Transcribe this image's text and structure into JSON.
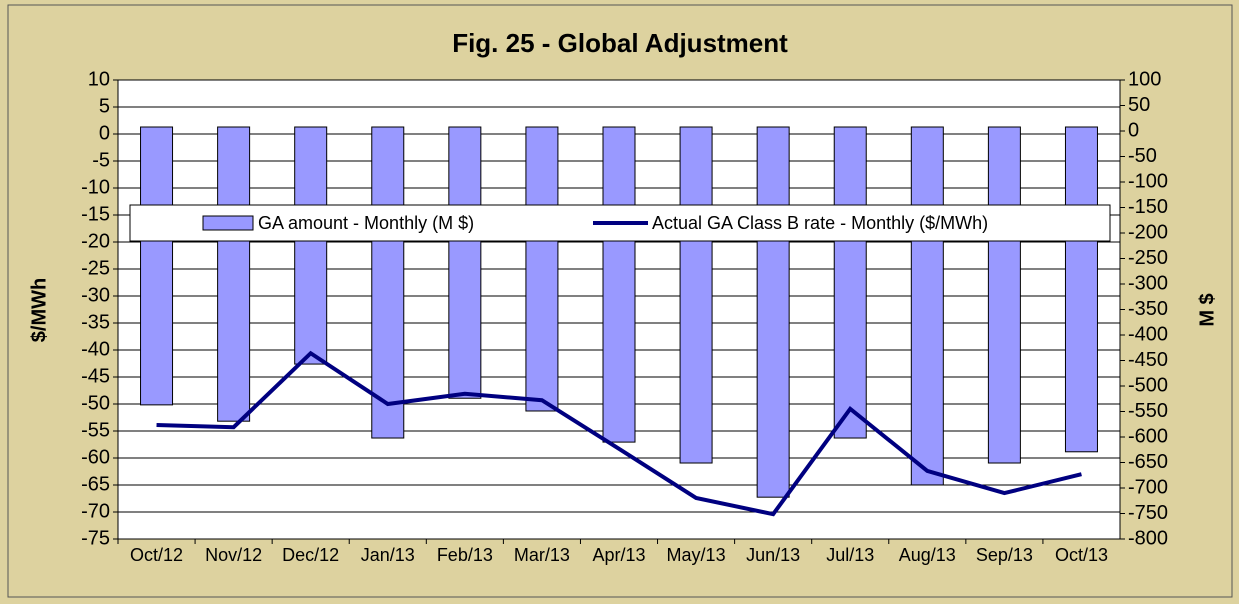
{
  "chart_data": {
    "type": "bar-line",
    "title": "Fig. 25 - Global Adjustment",
    "ylabel": "$/MWh",
    "y2label": "M $",
    "categories": [
      "Oct/12",
      "Nov/12",
      "Dec/12",
      "Jan/13",
      "Feb/13",
      "Mar/13",
      "Apr/13",
      "May/13",
      "Jun/13",
      "Jul/13",
      "Aug/13",
      "Sep/13",
      "Oct/13"
    ],
    "series": [
      {
        "name": "GA amount - Monthly (M $)",
        "type": "bar",
        "axis": "y2",
        "color": "#9999ff",
        "values": [
          -537,
          -569,
          -457,
          -602,
          -524,
          -549,
          -610,
          -651,
          -718,
          -602,
          -694,
          -651,
          -629
        ]
      },
      {
        "name": "Actual GA Class B rate - Monthly ($/MWh)",
        "type": "line",
        "axis": "y",
        "color": "#000080",
        "values": [
          -53.9,
          -54.3,
          -40.6,
          -50,
          -48.1,
          -49.3,
          -58.3,
          -67.4,
          -70.4,
          -50.9,
          -62.4,
          -66.5,
          -63
        ]
      }
    ],
    "ylim": [
      -75,
      10
    ],
    "yticks": [
      -75,
      -70,
      -65,
      -60,
      -55,
      -50,
      -45,
      -40,
      -35,
      -30,
      -25,
      -20,
      -15,
      -10,
      -5,
      0,
      5,
      10
    ],
    "y2lim": [
      -800,
      100
    ],
    "y2ticks": [
      -800,
      -750,
      -700,
      -650,
      -600,
      -550,
      -500,
      -450,
      -400,
      -350,
      -300,
      -250,
      -200,
      -150,
      -100,
      -50,
      0,
      50,
      100
    ],
    "grid": true
  }
}
